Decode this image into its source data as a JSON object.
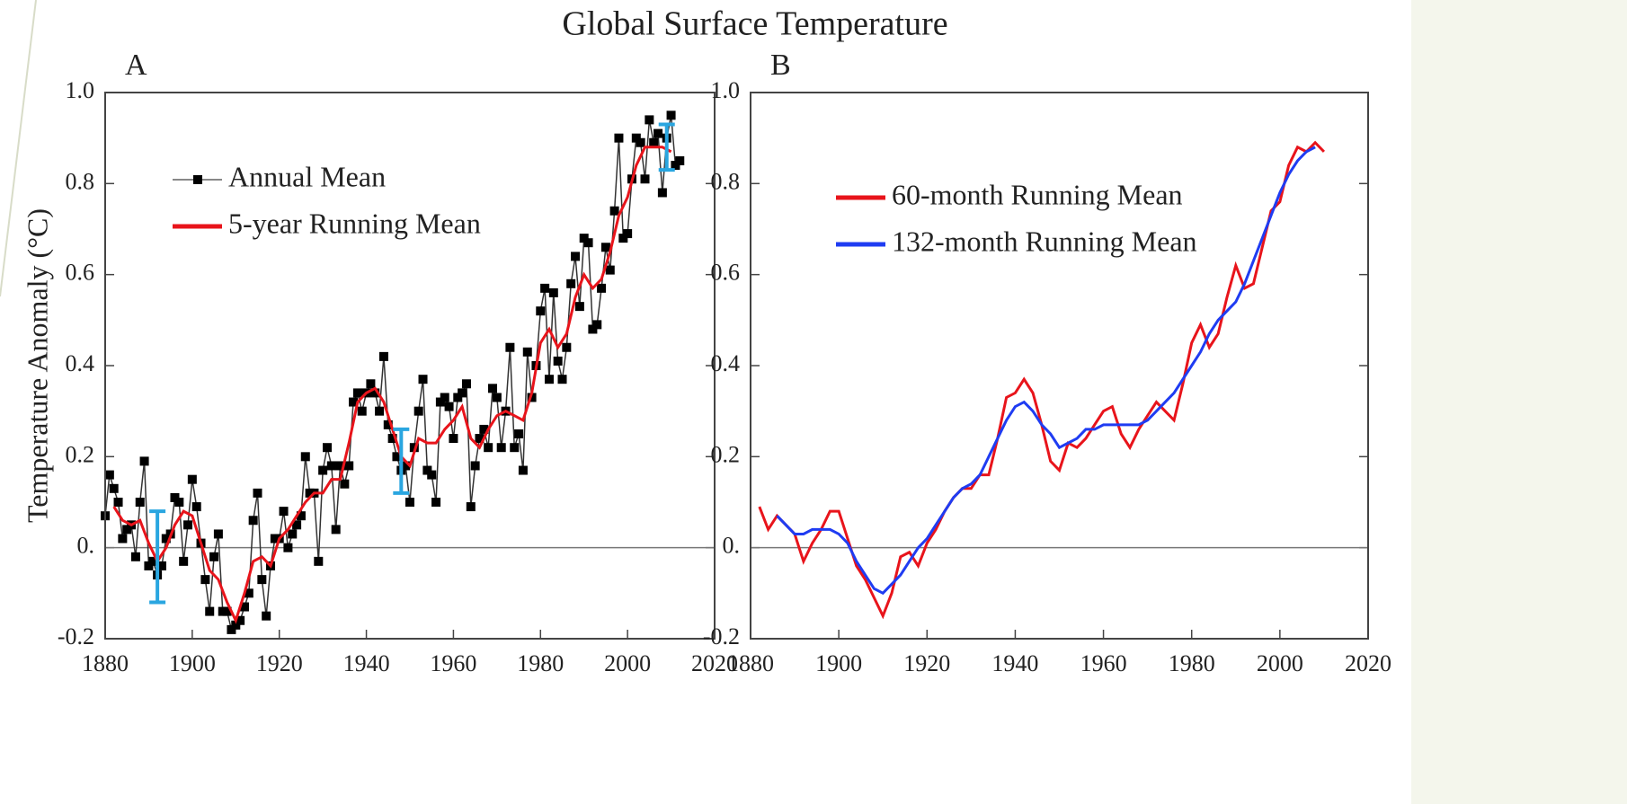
{
  "chart_data": [
    {
      "type": "line",
      "title": "Global Surface Temperature",
      "panel_label": "A",
      "y_label": "Temperature Anomaly (°C)",
      "xlim": [
        1880,
        2020
      ],
      "xticks": [
        1880,
        1900,
        1920,
        1940,
        1960,
        1980,
        2000,
        2020
      ],
      "ylim": [
        -0.2,
        1.0
      ],
      "yticks": [
        -0.2,
        {
          "value": 0,
          "label": "0."
        },
        0.2,
        0.4,
        0.6,
        0.8,
        {
          "value": 1,
          "label": "1.0"
        }
      ],
      "zero_line": true,
      "legend": "upper left",
      "series": [
        {
          "name": "Annual Mean",
          "color": "#000000",
          "markers": true,
          "x": [
            1880,
            1881,
            1882,
            1883,
            1884,
            1885,
            1886,
            1887,
            1888,
            1889,
            1890,
            1891,
            1892,
            1893,
            1894,
            1895,
            1896,
            1897,
            1898,
            1899,
            1900,
            1901,
            1902,
            1903,
            1904,
            1905,
            1906,
            1907,
            1908,
            1909,
            1910,
            1911,
            1912,
            1913,
            1914,
            1915,
            1916,
            1917,
            1918,
            1919,
            1920,
            1921,
            1922,
            1923,
            1924,
            1925,
            1926,
            1927,
            1928,
            1929,
            1930,
            1931,
            1932,
            1933,
            1934,
            1935,
            1936,
            1937,
            1938,
            1939,
            1940,
            1941,
            1942,
            1943,
            1944,
            1945,
            1946,
            1947,
            1948,
            1949,
            1950,
            1951,
            1952,
            1953,
            1954,
            1955,
            1956,
            1957,
            1958,
            1959,
            1960,
            1961,
            1962,
            1963,
            1964,
            1965,
            1966,
            1967,
            1968,
            1969,
            1970,
            1971,
            1972,
            1973,
            1974,
            1975,
            1976,
            1977,
            1978,
            1979,
            1980,
            1981,
            1982,
            1983,
            1984,
            1985,
            1986,
            1987,
            1988,
            1989,
            1990,
            1991,
            1992,
            1993,
            1994,
            1995,
            1996,
            1997,
            1998,
            1999,
            2000,
            2001,
            2002,
            2003,
            2004,
            2005,
            2006,
            2007,
            2008,
            2009,
            2010,
            2011,
            2012
          ],
          "values": [
            0.07,
            0.16,
            0.13,
            0.1,
            0.02,
            0.04,
            0.05,
            -0.02,
            0.1,
            0.19,
            -0.04,
            -0.03,
            -0.06,
            -0.04,
            0.02,
            0.03,
            0.11,
            0.1,
            -0.03,
            0.05,
            0.15,
            0.09,
            0.01,
            -0.07,
            -0.14,
            -0.02,
            0.03,
            -0.14,
            -0.14,
            -0.18,
            -0.17,
            -0.16,
            -0.13,
            -0.1,
            0.06,
            0.12,
            -0.07,
            -0.15,
            -0.04,
            0.02,
            0.02,
            0.08,
            0.0,
            0.03,
            0.05,
            0.07,
            0.2,
            0.12,
            0.12,
            -0.03,
            0.17,
            0.22,
            0.18,
            0.04,
            0.18,
            0.14,
            0.18,
            0.32,
            0.34,
            0.3,
            0.34,
            0.36,
            0.34,
            0.3,
            0.42,
            0.27,
            0.24,
            0.2,
            0.17,
            0.18,
            0.1,
            0.22,
            0.3,
            0.37,
            0.17,
            0.16,
            0.1,
            0.32,
            0.33,
            0.31,
            0.24,
            0.33,
            0.34,
            0.36,
            0.09,
            0.18,
            0.24,
            0.26,
            0.22,
            0.35,
            0.33,
            0.22,
            0.3,
            0.44,
            0.22,
            0.25,
            0.17,
            0.43,
            0.33,
            0.4,
            0.52,
            0.57,
            0.37,
            0.56,
            0.41,
            0.37,
            0.44,
            0.58,
            0.64,
            0.53,
            0.68,
            0.67,
            0.48,
            0.49,
            0.57,
            0.66,
            0.61,
            0.74,
            0.9,
            0.68,
            0.69,
            0.81,
            0.9,
            0.89,
            0.81,
            0.94,
            0.89,
            0.91,
            0.78,
            0.9,
            0.95,
            0.84,
            0.85
          ]
        },
        {
          "name": "5-year Running Mean",
          "color": "#e8141b",
          "x": [
            1882,
            1884,
            1886,
            1888,
            1890,
            1892,
            1894,
            1896,
            1898,
            1900,
            1902,
            1904,
            1906,
            1908,
            1910,
            1912,
            1914,
            1916,
            1918,
            1920,
            1922,
            1924,
            1926,
            1928,
            1930,
            1932,
            1934,
            1936,
            1938,
            1940,
            1942,
            1944,
            1946,
            1948,
            1950,
            1952,
            1954,
            1956,
            1958,
            1960,
            1962,
            1964,
            1966,
            1968,
            1970,
            1972,
            1974,
            1976,
            1978,
            1980,
            1982,
            1984,
            1986,
            1988,
            1990,
            1992,
            1994,
            1996,
            1998,
            2000,
            2002,
            2004,
            2006,
            2008,
            2010
          ],
          "values": [
            0.09,
            0.06,
            0.05,
            0.06,
            0.01,
            -0.03,
            0.0,
            0.05,
            0.08,
            0.07,
            0.01,
            -0.05,
            -0.07,
            -0.12,
            -0.16,
            -0.1,
            -0.03,
            -0.02,
            -0.04,
            0.02,
            0.04,
            0.07,
            0.1,
            0.12,
            0.12,
            0.15,
            0.15,
            0.23,
            0.32,
            0.34,
            0.35,
            0.32,
            0.26,
            0.2,
            0.18,
            0.24,
            0.23,
            0.23,
            0.26,
            0.28,
            0.31,
            0.24,
            0.22,
            0.26,
            0.29,
            0.3,
            0.29,
            0.28,
            0.34,
            0.45,
            0.48,
            0.44,
            0.47,
            0.55,
            0.6,
            0.57,
            0.59,
            0.65,
            0.73,
            0.77,
            0.84,
            0.88,
            0.88,
            0.88,
            0.87
          ]
        }
      ],
      "error_bars": {
        "color": "#2aa6e0",
        "x": [
          1892,
          1948,
          2009
        ],
        "values": [
          -0.02,
          0.19,
          0.88
        ],
        "errors": [
          0.1,
          0.07,
          0.05
        ]
      }
    },
    {
      "type": "line",
      "panel_label": "B",
      "xlim": [
        1880,
        2020
      ],
      "xticks": [
        1880,
        1900,
        1920,
        1940,
        1960,
        1980,
        2000,
        2020
      ],
      "ylim": [
        -0.2,
        1.0
      ],
      "yticks": [
        -0.2,
        {
          "value": 0,
          "label": "0."
        },
        0.2,
        0.4,
        0.6,
        0.8,
        {
          "value": 1,
          "label": "1.0"
        }
      ],
      "zero_line": true,
      "legend": "upper left",
      "series": [
        {
          "name": "60-month Running Mean",
          "color": "#e8141b",
          "x": [
            1882,
            1884,
            1886,
            1888,
            1890,
            1892,
            1894,
            1896,
            1898,
            1900,
            1902,
            1904,
            1906,
            1908,
            1910,
            1912,
            1914,
            1916,
            1918,
            1920,
            1922,
            1924,
            1926,
            1928,
            1930,
            1932,
            1934,
            1936,
            1938,
            1940,
            1942,
            1944,
            1946,
            1948,
            1950,
            1952,
            1954,
            1956,
            1958,
            1960,
            1962,
            1964,
            1966,
            1968,
            1970,
            1972,
            1974,
            1976,
            1978,
            1980,
            1982,
            1984,
            1986,
            1988,
            1990,
            1992,
            1994,
            1996,
            1998,
            2000,
            2002,
            2004,
            2006,
            2008,
            2010
          ],
          "values": [
            0.09,
            0.04,
            0.07,
            0.05,
            0.03,
            -0.03,
            0.01,
            0.04,
            0.08,
            0.08,
            0.02,
            -0.04,
            -0.07,
            -0.11,
            -0.15,
            -0.1,
            -0.02,
            -0.01,
            -0.04,
            0.01,
            0.04,
            0.08,
            0.11,
            0.13,
            0.13,
            0.16,
            0.16,
            0.24,
            0.33,
            0.34,
            0.37,
            0.34,
            0.27,
            0.19,
            0.17,
            0.23,
            0.22,
            0.24,
            0.27,
            0.3,
            0.31,
            0.25,
            0.22,
            0.26,
            0.29,
            0.32,
            0.3,
            0.28,
            0.36,
            0.45,
            0.49,
            0.44,
            0.47,
            0.55,
            0.62,
            0.57,
            0.58,
            0.66,
            0.74,
            0.76,
            0.84,
            0.88,
            0.87,
            0.89,
            0.87
          ]
        },
        {
          "name": "132-month Running Mean",
          "color": "#1f3cf2",
          "x": [
            1886,
            1888,
            1890,
            1892,
            1894,
            1896,
            1898,
            1900,
            1902,
            1904,
            1906,
            1908,
            1910,
            1912,
            1914,
            1916,
            1918,
            1920,
            1922,
            1924,
            1926,
            1928,
            1930,
            1932,
            1934,
            1936,
            1938,
            1940,
            1942,
            1944,
            1946,
            1948,
            1950,
            1952,
            1954,
            1956,
            1958,
            1960,
            1962,
            1964,
            1966,
            1968,
            1970,
            1972,
            1974,
            1976,
            1978,
            1980,
            1982,
            1984,
            1986,
            1988,
            1990,
            1992,
            1994,
            1996,
            1998,
            2000,
            2002,
            2004,
            2006,
            2008
          ],
          "values": [
            0.07,
            0.05,
            0.03,
            0.03,
            0.04,
            0.04,
            0.04,
            0.03,
            0.01,
            -0.03,
            -0.06,
            -0.09,
            -0.1,
            -0.08,
            -0.06,
            -0.03,
            0.0,
            0.02,
            0.05,
            0.08,
            0.11,
            0.13,
            0.14,
            0.16,
            0.2,
            0.24,
            0.28,
            0.31,
            0.32,
            0.3,
            0.27,
            0.25,
            0.22,
            0.23,
            0.24,
            0.26,
            0.26,
            0.27,
            0.27,
            0.27,
            0.27,
            0.27,
            0.28,
            0.3,
            0.32,
            0.34,
            0.37,
            0.4,
            0.43,
            0.47,
            0.5,
            0.52,
            0.54,
            0.58,
            0.63,
            0.68,
            0.73,
            0.78,
            0.82,
            0.85,
            0.87,
            0.88
          ]
        }
      ]
    }
  ]
}
